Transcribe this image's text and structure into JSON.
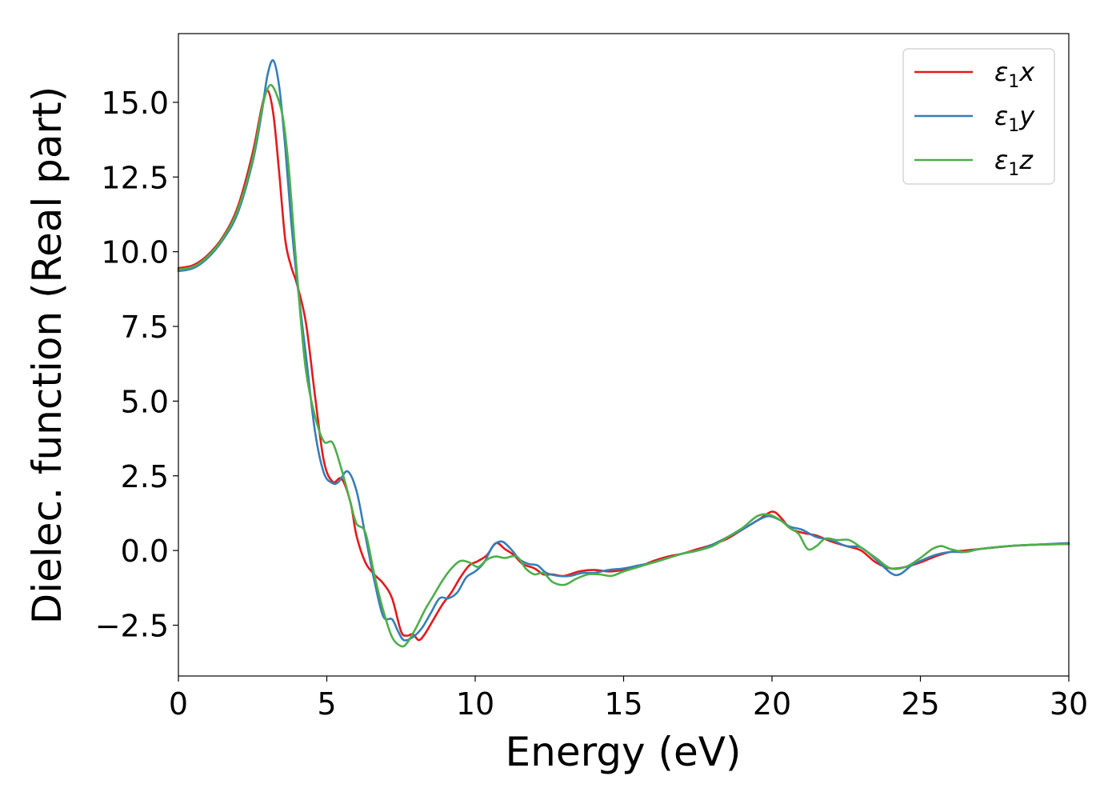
{
  "chart_data": {
    "type": "line",
    "title": "",
    "xlabel": "Energy (eV)",
    "ylabel": "Dielec. function (Real part)",
    "xlim": [
      0,
      30
    ],
    "ylim": [
      -4.2,
      17.3
    ],
    "xticks": [
      0,
      5,
      10,
      15,
      20,
      25,
      30
    ],
    "xtick_labels": [
      "0",
      "5",
      "10",
      "15",
      "20",
      "25",
      "30"
    ],
    "yticks": [
      -2.5,
      0.0,
      2.5,
      5.0,
      7.5,
      10.0,
      12.5,
      15.0
    ],
    "ytick_labels": [
      "−2.5",
      "0.0",
      "2.5",
      "5.0",
      "7.5",
      "10.0",
      "12.5",
      "15.0"
    ],
    "grid": false,
    "legend_position": "top-right",
    "series": [
      {
        "name": "ε₁x",
        "legend_main": "ε",
        "legend_sub": "1",
        "legend_tail": "x",
        "color": "#e41a1c",
        "points": [
          [
            0,
            9.45
          ],
          [
            0.5,
            9.55
          ],
          [
            1.0,
            9.9
          ],
          [
            1.5,
            10.5
          ],
          [
            2.0,
            11.5
          ],
          [
            2.5,
            13.3
          ],
          [
            2.8,
            14.8
          ],
          [
            3.0,
            15.4
          ],
          [
            3.2,
            14.6
          ],
          [
            3.4,
            12.6
          ],
          [
            3.6,
            10.4
          ],
          [
            3.8,
            9.5
          ],
          [
            4.0,
            8.9
          ],
          [
            4.3,
            7.6
          ],
          [
            4.6,
            5.2
          ],
          [
            4.9,
            3.0
          ],
          [
            5.2,
            2.3
          ],
          [
            5.5,
            2.4
          ],
          [
            5.8,
            1.6
          ],
          [
            6.0,
            0.5
          ],
          [
            6.3,
            -0.4
          ],
          [
            6.6,
            -0.8
          ],
          [
            6.9,
            -1.1
          ],
          [
            7.2,
            -1.6
          ],
          [
            7.5,
            -2.7
          ],
          [
            7.7,
            -2.85
          ],
          [
            7.9,
            -2.8
          ],
          [
            8.1,
            -3.0
          ],
          [
            8.3,
            -2.8
          ],
          [
            8.6,
            -2.3
          ],
          [
            8.9,
            -1.8
          ],
          [
            9.2,
            -1.4
          ],
          [
            9.5,
            -0.9
          ],
          [
            9.8,
            -0.5
          ],
          [
            10.1,
            -0.35
          ],
          [
            10.4,
            -0.15
          ],
          [
            10.7,
            0.25
          ],
          [
            11.0,
            0.05
          ],
          [
            11.3,
            -0.15
          ],
          [
            11.6,
            -0.45
          ],
          [
            12.0,
            -0.6
          ],
          [
            12.3,
            -0.8
          ],
          [
            12.6,
            -0.8
          ],
          [
            13.0,
            -0.85
          ],
          [
            13.5,
            -0.7
          ],
          [
            14.0,
            -0.65
          ],
          [
            14.5,
            -0.7
          ],
          [
            15.0,
            -0.65
          ],
          [
            15.5,
            -0.55
          ],
          [
            16.0,
            -0.35
          ],
          [
            16.5,
            -0.2
          ],
          [
            17.0,
            -0.1
          ],
          [
            17.5,
            0.05
          ],
          [
            18.0,
            0.2
          ],
          [
            18.5,
            0.4
          ],
          [
            19.0,
            0.7
          ],
          [
            19.5,
            1.0
          ],
          [
            20.0,
            1.3
          ],
          [
            20.3,
            1.1
          ],
          [
            20.6,
            0.75
          ],
          [
            21.0,
            0.6
          ],
          [
            21.5,
            0.5
          ],
          [
            22.0,
            0.3
          ],
          [
            22.5,
            0.15
          ],
          [
            23.0,
            0.0
          ],
          [
            23.5,
            -0.4
          ],
          [
            24.0,
            -0.6
          ],
          [
            24.5,
            -0.55
          ],
          [
            25.0,
            -0.4
          ],
          [
            25.5,
            -0.2
          ],
          [
            26.0,
            -0.05
          ],
          [
            26.5,
            0.0
          ],
          [
            27.0,
            0.05
          ],
          [
            28.0,
            0.15
          ],
          [
            29.0,
            0.2
          ],
          [
            30.0,
            0.22
          ]
        ]
      },
      {
        "name": "ε₁y",
        "legend_main": "ε",
        "legend_sub": "1",
        "legend_tail": "y",
        "color": "#377eb8",
        "points": [
          [
            0,
            9.35
          ],
          [
            0.5,
            9.45
          ],
          [
            1.0,
            9.8
          ],
          [
            1.5,
            10.4
          ],
          [
            2.0,
            11.3
          ],
          [
            2.5,
            13.0
          ],
          [
            2.8,
            14.6
          ],
          [
            3.0,
            15.9
          ],
          [
            3.2,
            16.4
          ],
          [
            3.4,
            15.5
          ],
          [
            3.6,
            13.5
          ],
          [
            3.8,
            11.0
          ],
          [
            4.0,
            9.0
          ],
          [
            4.3,
            6.5
          ],
          [
            4.6,
            4.0
          ],
          [
            4.9,
            2.6
          ],
          [
            5.2,
            2.25
          ],
          [
            5.4,
            2.3
          ],
          [
            5.7,
            2.65
          ],
          [
            6.0,
            2.0
          ],
          [
            6.3,
            0.5
          ],
          [
            6.6,
            -1.0
          ],
          [
            6.9,
            -2.2
          ],
          [
            7.2,
            -2.3
          ],
          [
            7.4,
            -2.7
          ],
          [
            7.6,
            -3.0
          ],
          [
            7.9,
            -2.9
          ],
          [
            8.2,
            -2.6
          ],
          [
            8.5,
            -2.1
          ],
          [
            8.8,
            -1.6
          ],
          [
            9.1,
            -1.6
          ],
          [
            9.4,
            -1.4
          ],
          [
            9.7,
            -0.9
          ],
          [
            10.0,
            -0.7
          ],
          [
            10.3,
            -0.4
          ],
          [
            10.6,
            0.15
          ],
          [
            10.9,
            0.3
          ],
          [
            11.2,
            0.05
          ],
          [
            11.5,
            -0.3
          ],
          [
            11.8,
            -0.45
          ],
          [
            12.1,
            -0.5
          ],
          [
            12.4,
            -0.75
          ],
          [
            12.8,
            -0.85
          ],
          [
            13.2,
            -0.85
          ],
          [
            13.6,
            -0.75
          ],
          [
            14.0,
            -0.75
          ],
          [
            14.5,
            -0.65
          ],
          [
            15.0,
            -0.6
          ],
          [
            15.5,
            -0.5
          ],
          [
            16.0,
            -0.4
          ],
          [
            16.5,
            -0.25
          ],
          [
            17.0,
            -0.1
          ],
          [
            17.5,
            0.0
          ],
          [
            18.0,
            0.2
          ],
          [
            18.5,
            0.45
          ],
          [
            19.0,
            0.7
          ],
          [
            19.5,
            1.0
          ],
          [
            19.9,
            1.15
          ],
          [
            20.3,
            1.0
          ],
          [
            20.6,
            0.8
          ],
          [
            21.0,
            0.7
          ],
          [
            21.5,
            0.45
          ],
          [
            22.0,
            0.35
          ],
          [
            22.5,
            0.15
          ],
          [
            23.0,
            0.1
          ],
          [
            23.5,
            -0.3
          ],
          [
            24.0,
            -0.75
          ],
          [
            24.3,
            -0.8
          ],
          [
            24.7,
            -0.5
          ],
          [
            25.0,
            -0.35
          ],
          [
            25.5,
            -0.15
          ],
          [
            26.0,
            -0.05
          ],
          [
            26.5,
            -0.05
          ],
          [
            27.0,
            0.05
          ],
          [
            28.0,
            0.15
          ],
          [
            29.0,
            0.2
          ],
          [
            30.0,
            0.25
          ]
        ]
      },
      {
        "name": "ε₁z",
        "legend_main": "ε",
        "legend_sub": "1",
        "legend_tail": "z",
        "color": "#4daf4a",
        "points": [
          [
            0,
            9.4
          ],
          [
            0.5,
            9.5
          ],
          [
            1.0,
            9.85
          ],
          [
            1.5,
            10.45
          ],
          [
            2.0,
            11.4
          ],
          [
            2.5,
            13.1
          ],
          [
            2.8,
            14.7
          ],
          [
            3.0,
            15.45
          ],
          [
            3.2,
            15.5
          ],
          [
            3.5,
            14.6
          ],
          [
            3.7,
            13.0
          ],
          [
            3.9,
            10.5
          ],
          [
            4.1,
            8.0
          ],
          [
            4.3,
            6.0
          ],
          [
            4.6,
            4.5
          ],
          [
            4.9,
            3.65
          ],
          [
            5.2,
            3.6
          ],
          [
            5.5,
            2.7
          ],
          [
            5.8,
            1.6
          ],
          [
            6.0,
            0.9
          ],
          [
            6.3,
            0.6
          ],
          [
            6.6,
            -0.8
          ],
          [
            6.9,
            -2.0
          ],
          [
            7.2,
            -2.9
          ],
          [
            7.5,
            -3.2
          ],
          [
            7.7,
            -3.1
          ],
          [
            8.0,
            -2.6
          ],
          [
            8.3,
            -2.0
          ],
          [
            8.6,
            -1.5
          ],
          [
            8.9,
            -1.0
          ],
          [
            9.2,
            -0.6
          ],
          [
            9.5,
            -0.35
          ],
          [
            9.8,
            -0.4
          ],
          [
            10.1,
            -0.55
          ],
          [
            10.4,
            -0.3
          ],
          [
            10.7,
            -0.2
          ],
          [
            11.0,
            -0.25
          ],
          [
            11.4,
            -0.2
          ],
          [
            11.7,
            -0.6
          ],
          [
            12.0,
            -0.8
          ],
          [
            12.3,
            -0.75
          ],
          [
            12.6,
            -1.05
          ],
          [
            13.0,
            -1.15
          ],
          [
            13.4,
            -0.95
          ],
          [
            13.8,
            -0.8
          ],
          [
            14.2,
            -0.8
          ],
          [
            14.6,
            -0.85
          ],
          [
            15.0,
            -0.7
          ],
          [
            15.5,
            -0.55
          ],
          [
            16.0,
            -0.4
          ],
          [
            16.5,
            -0.25
          ],
          [
            17.0,
            -0.1
          ],
          [
            17.5,
            0.0
          ],
          [
            18.0,
            0.15
          ],
          [
            18.5,
            0.45
          ],
          [
            19.0,
            0.75
          ],
          [
            19.5,
            1.15
          ],
          [
            19.9,
            1.2
          ],
          [
            20.3,
            1.0
          ],
          [
            20.6,
            0.75
          ],
          [
            20.9,
            0.55
          ],
          [
            21.2,
            0.05
          ],
          [
            21.5,
            0.15
          ],
          [
            21.8,
            0.4
          ],
          [
            22.2,
            0.35
          ],
          [
            22.6,
            0.35
          ],
          [
            23.0,
            0.1
          ],
          [
            23.5,
            -0.25
          ],
          [
            24.0,
            -0.6
          ],
          [
            24.5,
            -0.55
          ],
          [
            25.0,
            -0.25
          ],
          [
            25.4,
            0.05
          ],
          [
            25.7,
            0.15
          ],
          [
            26.0,
            0.05
          ],
          [
            26.5,
            -0.05
          ],
          [
            27.0,
            0.05
          ],
          [
            28.0,
            0.15
          ],
          [
            29.0,
            0.2
          ],
          [
            30.0,
            0.22
          ]
        ]
      }
    ]
  }
}
